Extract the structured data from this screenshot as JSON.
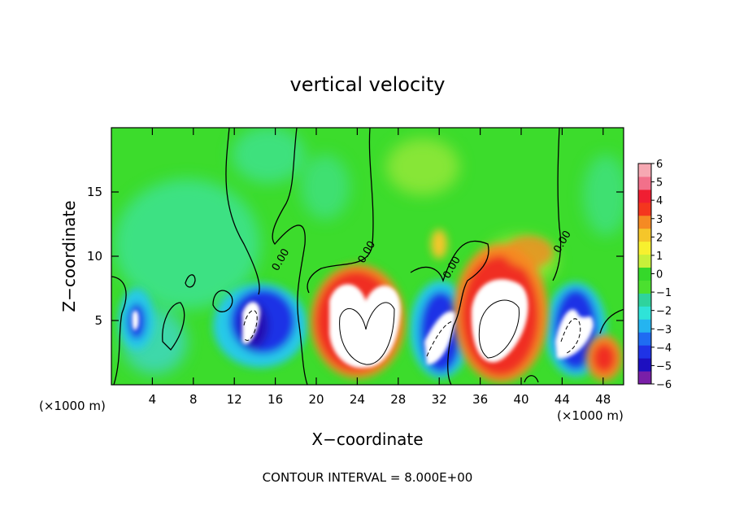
{
  "chart_data": {
    "type": "heatmap",
    "title": "vertical velocity",
    "xlabel": "X−coordinate",
    "ylabel": "Z−coordinate",
    "x_unit_left": "(×1000 m)",
    "x_unit_right": "(×1000 m)",
    "xlim": [
      0,
      50
    ],
    "ylim": [
      0,
      20
    ],
    "x_ticks": [
      4,
      8,
      12,
      16,
      20,
      24,
      28,
      32,
      36,
      40,
      44,
      48
    ],
    "y_ticks": [
      5,
      10,
      15
    ],
    "contour_interval_text": "CONTOUR INTERVAL = 8.000E+00",
    "contour_labels": [
      {
        "text": "0.00",
        "x": 16.8,
        "y": 9.6
      },
      {
        "text": "0.00",
        "x": 25.2,
        "y": 10.2
      },
      {
        "text": "0.00",
        "x": 33.5,
        "y": 9.0
      },
      {
        "text": "0.00",
        "x": 44.3,
        "y": 11.0
      }
    ],
    "colorbar": {
      "min": -6,
      "max": 6,
      "tick_labels": [
        "6",
        "5",
        "4",
        "3",
        "2",
        "1",
        "0",
        "−1",
        "−2",
        "−3",
        "−4",
        "−5",
        "−6"
      ],
      "colors": [
        "#7a1fa8",
        "#1d0fc0",
        "#1f33e6",
        "#1f6cf2",
        "#25b4f0",
        "#2fe3d8",
        "#2fd39d",
        "#4be02f",
        "#35d82a",
        "#c8f03a",
        "#f7f02f",
        "#f5c62a",
        "#f58a23",
        "#f4361e",
        "#f01e32",
        "#f2708a",
        "#f6a8b2"
      ]
    },
    "features": [
      {
        "kind": "updraft",
        "x": 25.0,
        "z": 4.2,
        "peak": 6
      },
      {
        "kind": "updraft",
        "x": 36.5,
        "z": 4.5,
        "peak": 6
      },
      {
        "kind": "updraft",
        "x": 48.5,
        "z": 2.5,
        "peak": 5
      },
      {
        "kind": "updraft",
        "x": 33.5,
        "z": 11.5,
        "peak": 3
      },
      {
        "kind": "downdraft",
        "x": 14.5,
        "z": 4.5,
        "peak": -6
      },
      {
        "kind": "downdraft",
        "x": 31.0,
        "z": 4.0,
        "peak": -6
      },
      {
        "kind": "downdraft",
        "x": 44.5,
        "z": 4.5,
        "peak": -6
      },
      {
        "kind": "downdraft",
        "x": 2.5,
        "z": 5.0,
        "peak": -5
      }
    ]
  }
}
